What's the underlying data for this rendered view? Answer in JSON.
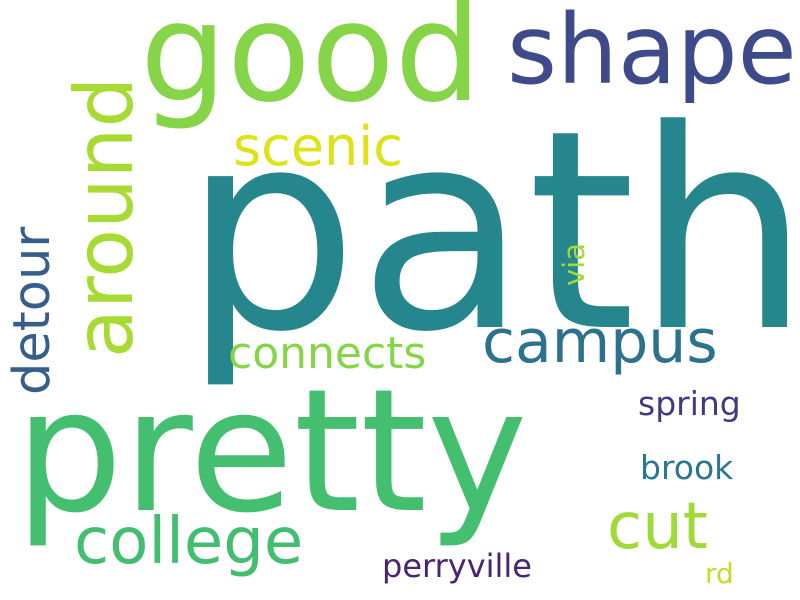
{
  "words": {
    "path": {
      "text": "path",
      "color": "#26868E"
    },
    "pretty": {
      "text": "pretty",
      "color": "#44BF70"
    },
    "good": {
      "text": "good",
      "color": "#86D549"
    },
    "shape": {
      "text": "shape",
      "color": "#3E4A89"
    },
    "around": {
      "text": "around",
      "color": "#A7DB33"
    },
    "college": {
      "text": "college",
      "color": "#43BE71"
    },
    "cut": {
      "text": "cut",
      "color": "#A0DA39"
    },
    "campus": {
      "text": "campus",
      "color": "#2C718E"
    },
    "scenic": {
      "text": "scenic",
      "color": "#DDE318"
    },
    "detour": {
      "text": "detour",
      "color": "#355E8D"
    },
    "connects": {
      "text": "connects",
      "color": "#86D549"
    },
    "spring": {
      "text": "spring",
      "color": "#453882"
    },
    "brook": {
      "text": "brook",
      "color": "#2A788E"
    },
    "perryville": {
      "text": "perryville",
      "color": "#482475"
    },
    "via": {
      "text": "via",
      "color": "#A2DA37"
    },
    "rd": {
      "text": "rd",
      "color": "#BDDF26"
    }
  }
}
